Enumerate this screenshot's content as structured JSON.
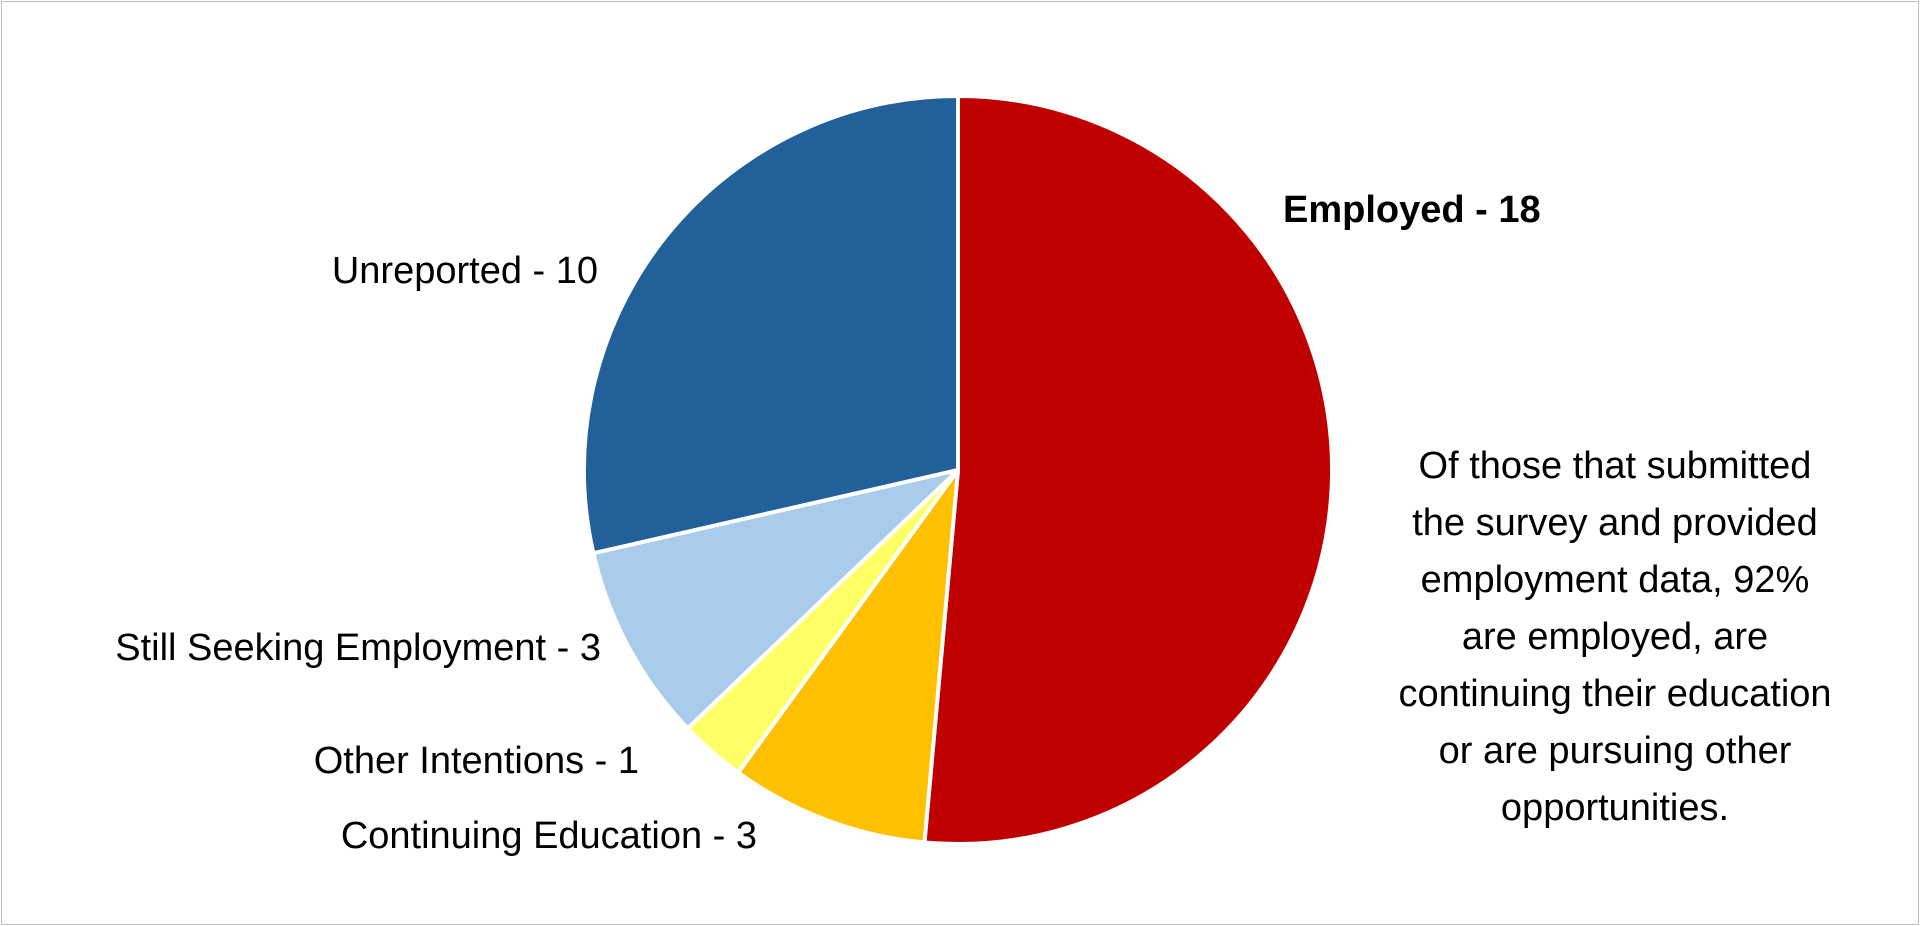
{
  "chart_data": {
    "type": "pie",
    "start": "12 o'clock",
    "direction": "clockwise",
    "slices": [
      {
        "label": "Employed - 18",
        "value": 18,
        "color": "#C00000",
        "bold": true
      },
      {
        "label": "Continuing Education - 3",
        "value": 3,
        "color": "#FFC000",
        "bold": false
      },
      {
        "label": "Other Intentions - 1",
        "value": 1,
        "color": "#FFFF66",
        "bold": false
      },
      {
        "label": "Still Seeking Employment - 3",
        "value": 3,
        "color": "#A9CBEC",
        "bold": false
      },
      {
        "label": "Unreported - 10",
        "value": 10,
        "color": "#226099",
        "bold": false
      }
    ],
    "slice_border_color": "#FFFFFF",
    "legend": "none (data labels beside slices)"
  },
  "annotation": {
    "lines": [
      "Of those that submitted",
      "the survey and provided",
      "employment data, 92%",
      "are employed, are",
      "continuing their education",
      "or are pursuing other",
      "opportunities."
    ]
  }
}
